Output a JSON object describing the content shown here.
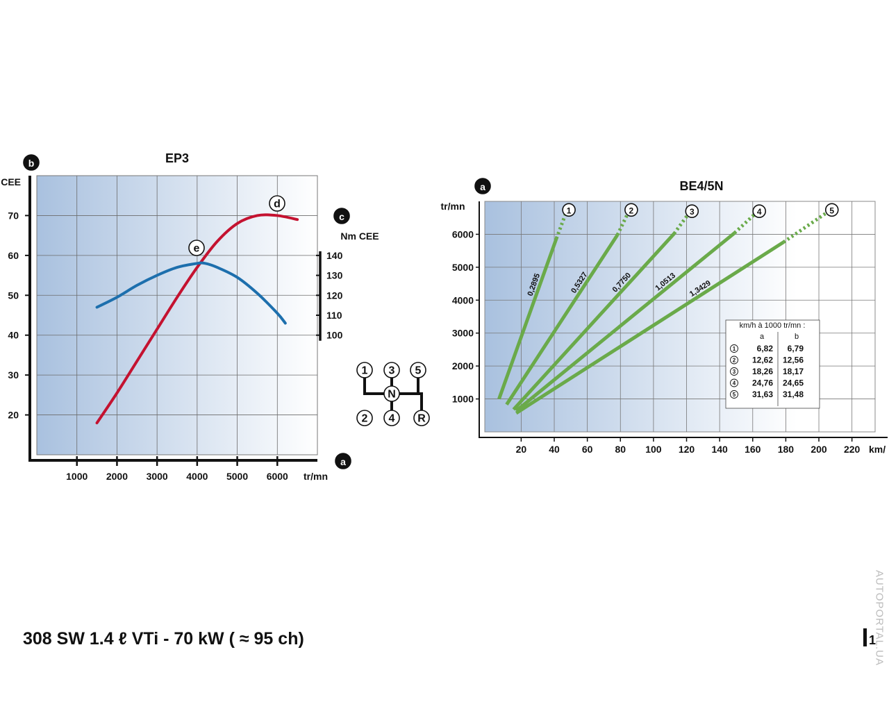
{
  "chart_data": [
    {
      "type": "line",
      "title": "EP3",
      "ylabel": "CEE",
      "y2label": "Nm CEE",
      "xlabel": "tr/mn",
      "axis_markers": {
        "y": "b",
        "y2": "c",
        "x": "a"
      },
      "annotations": [
        "d",
        "e"
      ],
      "xlim": [
        0,
        7000
      ],
      "xticks": [
        1000,
        2000,
        3000,
        4000,
        5000,
        6000
      ],
      "ylim": [
        10,
        80
      ],
      "yticks": [
        20,
        30,
        40,
        50,
        60,
        70
      ],
      "y2lim": [
        40,
        180
      ],
      "y2ticks": [
        100,
        110,
        120,
        130,
        140
      ],
      "grid": true,
      "series": [
        {
          "color": "#c41230",
          "x": [
            1500,
            2000,
            2500,
            3000,
            3500,
            4000,
            4500,
            5000,
            5500,
            6000,
            6500
          ],
          "values": [
            18,
            25.5,
            33.5,
            41.5,
            49.5,
            57,
            63.5,
            68,
            70,
            70,
            69
          ]
        },
        {
          "color": "#1d6fad",
          "axis": "y2",
          "x": [
            1500,
            2000,
            2500,
            3000,
            3500,
            4000,
            4200,
            4500,
            5000,
            5500,
            6000,
            6200
          ],
          "values": [
            114,
            119,
            125,
            130,
            134,
            136,
            136,
            134,
            129,
            121,
            111,
            106
          ]
        }
      ]
    },
    {
      "type": "line",
      "title": "BE4/5N",
      "ylabel": "tr/mn",
      "xlabel": "km/",
      "axis_marker": "a",
      "xlim": [
        -2,
        234
      ],
      "xticks": [
        20,
        40,
        60,
        80,
        100,
        120,
        140,
        160,
        180,
        200,
        220
      ],
      "ylim": [
        0,
        7000
      ],
      "yticks": [
        1000,
        2000,
        3000,
        4000,
        5000,
        6000
      ],
      "grid": true,
      "series": [
        {
          "name": "1",
          "label": "0,2895",
          "color": "#6aaa4a",
          "x": [
            6.6,
            41.3,
            47.6
          ],
          "values": [
            1000,
            5870,
            6720
          ]
        },
        {
          "name": "2",
          "label": "0,5327",
          "color": "#6aaa4a",
          "x": [
            11.2,
            78.2,
            85.3
          ],
          "values": [
            830,
            5980,
            6720
          ]
        },
        {
          "name": "3",
          "label": "0,7750",
          "color": "#6aaa4a",
          "x": [
            15.4,
            112.5,
            122
          ],
          "values": [
            680,
            6020,
            6680
          ]
        },
        {
          "name": "4",
          "label": "1,0513",
          "color": "#6aaa4a",
          "x": [
            17,
            149,
            162.7
          ],
          "values": [
            640,
            6040,
            6680
          ]
        },
        {
          "name": "5",
          "label": "1,3429",
          "color": "#6aaa4a",
          "x": [
            17,
            178.6,
            206.6
          ],
          "values": [
            570,
            5760,
            6720
          ]
        }
      ],
      "table": {
        "title": "km/h à 1000 tr/mn :",
        "columns": [
          "a",
          "b"
        ],
        "rows": [
          [
            "1",
            "6,82",
            "6,79"
          ],
          [
            "2",
            "12,62",
            "12,56"
          ],
          [
            "3",
            "18,26",
            "18,17"
          ],
          [
            "4",
            "24,76",
            "24,65"
          ],
          [
            "5",
            "31,63",
            "31,48"
          ]
        ]
      }
    }
  ],
  "shift_pattern": {
    "top": [
      "1",
      "3",
      "5"
    ],
    "neutral": "N",
    "bottom": [
      "2",
      "4",
      "R"
    ]
  },
  "footer": {
    "title": "308 SW 1.4 ℓ VTi - 70 kW ( ≈ 95 ch)",
    "page": "1"
  },
  "watermark": "AUTOPORTAL.UA"
}
